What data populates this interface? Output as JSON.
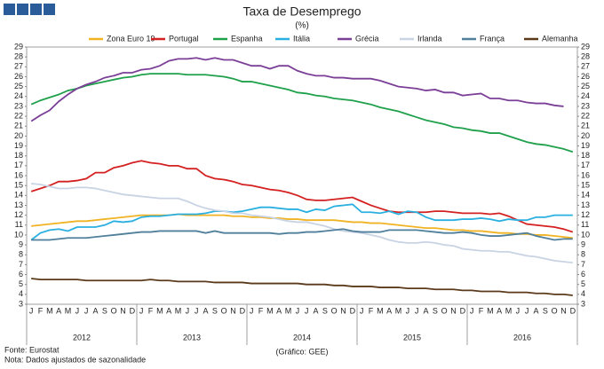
{
  "chart_data": {
    "type": "line",
    "title": "Taxa de Desemprego",
    "subtitle": "(%)",
    "categories": [
      "J",
      "F",
      "M",
      "A",
      "M",
      "J",
      "J",
      "A",
      "S",
      "O",
      "N",
      "D",
      "J",
      "F",
      "M",
      "A",
      "M",
      "J",
      "J",
      "A",
      "S",
      "O",
      "N",
      "D",
      "J",
      "F",
      "M",
      "A",
      "M",
      "J",
      "J",
      "A",
      "S",
      "O",
      "N",
      "D",
      "J",
      "F",
      "M",
      "A",
      "M",
      "J",
      "J",
      "A",
      "S",
      "O",
      "N",
      "D",
      "J",
      "F",
      "M",
      "A",
      "M",
      "J",
      "J",
      "A",
      "S",
      "O",
      "N",
      "D"
    ],
    "years": [
      "2012",
      "2013",
      "2014",
      "2015",
      "2016"
    ],
    "ylim": [
      3,
      29
    ],
    "yticks": [
      3,
      4,
      5,
      6,
      7,
      8,
      9,
      10,
      11,
      12,
      13,
      14,
      15,
      16,
      17,
      18,
      19,
      20,
      21,
      22,
      23,
      24,
      25,
      26,
      27,
      28,
      29
    ],
    "series": [
      {
        "name": "Zona Euro 19",
        "color": "#f0b323",
        "values": [
          10.9,
          11.0,
          11.1,
          11.2,
          11.3,
          11.4,
          11.4,
          11.5,
          11.6,
          11.7,
          11.8,
          11.9,
          12.0,
          12.0,
          12.0,
          12.0,
          12.1,
          12.0,
          12.0,
          12.0,
          12.0,
          12.0,
          11.9,
          11.9,
          11.8,
          11.8,
          11.7,
          11.7,
          11.6,
          11.6,
          11.5,
          11.5,
          11.5,
          11.5,
          11.4,
          11.3,
          11.3,
          11.2,
          11.2,
          11.1,
          11.0,
          10.9,
          10.8,
          10.7,
          10.7,
          10.6,
          10.5,
          10.5,
          10.4,
          10.4,
          10.3,
          10.2,
          10.2,
          10.1,
          10.1,
          10.0,
          10.0,
          9.9,
          9.8,
          9.7
        ]
      },
      {
        "name": "Portugal",
        "color": "#d42020",
        "values": [
          14.4,
          14.7,
          15.0,
          15.4,
          15.4,
          15.5,
          15.7,
          16.3,
          16.3,
          16.8,
          17.0,
          17.3,
          17.5,
          17.3,
          17.2,
          17.0,
          17.0,
          16.7,
          16.7,
          16.0,
          15.7,
          15.6,
          15.4,
          15.1,
          15.0,
          14.8,
          14.6,
          14.5,
          14.3,
          14.0,
          13.6,
          13.5,
          13.5,
          13.6,
          13.7,
          13.8,
          13.4,
          13.0,
          12.7,
          12.4,
          12.3,
          12.3,
          12.3,
          12.3,
          12.4,
          12.4,
          12.3,
          12.2,
          12.2,
          12.2,
          12.1,
          12.2,
          11.9,
          11.5,
          11.1,
          11.0,
          10.9,
          10.8,
          10.6,
          10.3
        ]
      },
      {
        "name": "Espanha",
        "color": "#1fa04a",
        "values": [
          23.2,
          23.6,
          23.9,
          24.2,
          24.6,
          24.8,
          25.1,
          25.3,
          25.5,
          25.7,
          25.9,
          26.0,
          26.2,
          26.3,
          26.3,
          26.3,
          26.3,
          26.2,
          26.2,
          26.2,
          26.1,
          26.0,
          25.8,
          25.5,
          25.5,
          25.3,
          25.1,
          24.9,
          24.7,
          24.4,
          24.3,
          24.1,
          24.0,
          23.8,
          23.7,
          23.6,
          23.4,
          23.2,
          22.9,
          22.7,
          22.5,
          22.2,
          21.9,
          21.6,
          21.4,
          21.2,
          20.9,
          20.8,
          20.6,
          20.5,
          20.3,
          20.3,
          20.0,
          19.7,
          19.4,
          19.2,
          19.1,
          18.9,
          18.7,
          18.4
        ]
      },
      {
        "name": "Itália",
        "color": "#2ab0e0",
        "values": [
          9.5,
          10.2,
          10.5,
          10.6,
          10.4,
          10.8,
          10.8,
          10.8,
          11.0,
          11.4,
          11.3,
          11.4,
          11.8,
          11.9,
          11.9,
          12.0,
          12.1,
          12.1,
          12.1,
          12.2,
          12.4,
          12.4,
          12.3,
          12.4,
          12.6,
          12.8,
          12.8,
          12.7,
          12.6,
          12.6,
          12.3,
          12.6,
          12.5,
          12.9,
          13.0,
          13.1,
          12.3,
          12.3,
          12.2,
          12.4,
          12.1,
          12.4,
          12.3,
          11.8,
          11.5,
          11.5,
          11.5,
          11.6,
          11.6,
          11.7,
          11.6,
          11.4,
          11.6,
          11.5,
          11.5,
          11.8,
          11.8,
          12.0,
          12.0,
          12.0
        ]
      },
      {
        "name": "Grécia",
        "color": "#7b3f98",
        "values": [
          21.5,
          22.1,
          22.6,
          23.5,
          24.2,
          24.8,
          25.2,
          25.5,
          25.9,
          26.1,
          26.4,
          26.4,
          26.7,
          26.8,
          27.1,
          27.6,
          27.8,
          27.8,
          27.9,
          27.7,
          27.9,
          27.7,
          27.7,
          27.4,
          27.1,
          27.1,
          26.8,
          27.1,
          27.1,
          26.6,
          26.3,
          26.1,
          26.1,
          25.9,
          25.9,
          25.8,
          25.8,
          25.8,
          25.6,
          25.3,
          25.0,
          24.9,
          24.8,
          24.6,
          24.7,
          24.4,
          24.4,
          24.1,
          24.2,
          24.3,
          23.8,
          23.8,
          23.6,
          23.6,
          23.4,
          23.3,
          23.3,
          23.1,
          23.0,
          null
        ]
      },
      {
        "name": "Irlanda",
        "color": "#c8d3e3",
        "values": [
          15.2,
          15.1,
          14.9,
          14.7,
          14.7,
          14.8,
          14.8,
          14.7,
          14.5,
          14.3,
          14.1,
          14.0,
          13.9,
          13.8,
          13.7,
          13.7,
          13.7,
          13.4,
          13.0,
          12.7,
          12.5,
          12.4,
          12.2,
          12.2,
          12.0,
          11.9,
          11.8,
          11.6,
          11.4,
          11.3,
          11.3,
          11.1,
          10.9,
          10.6,
          10.4,
          10.3,
          10.2,
          10.0,
          9.8,
          9.5,
          9.3,
          9.2,
          9.2,
          9.3,
          9.2,
          9.0,
          8.9,
          8.6,
          8.5,
          8.4,
          8.4,
          8.3,
          8.3,
          8.1,
          7.9,
          7.8,
          7.6,
          7.4,
          7.3,
          7.2
        ]
      },
      {
        "name": "França",
        "color": "#4f7f9a",
        "values": [
          9.5,
          9.5,
          9.5,
          9.6,
          9.7,
          9.7,
          9.7,
          9.8,
          9.9,
          10.0,
          10.1,
          10.2,
          10.3,
          10.3,
          10.4,
          10.4,
          10.4,
          10.4,
          10.4,
          10.2,
          10.4,
          10.2,
          10.2,
          10.2,
          10.2,
          10.2,
          10.2,
          10.1,
          10.2,
          10.2,
          10.3,
          10.3,
          10.4,
          10.5,
          10.6,
          10.4,
          10.3,
          10.3,
          10.3,
          10.5,
          10.5,
          10.5,
          10.5,
          10.4,
          10.3,
          10.2,
          10.2,
          10.3,
          10.2,
          10.0,
          9.9,
          9.9,
          10.0,
          10.1,
          10.2,
          9.9,
          9.7,
          9.5,
          9.6,
          9.6
        ]
      },
      {
        "name": "Alemanha",
        "color": "#5a3a1a",
        "values": [
          5.6,
          5.5,
          5.5,
          5.5,
          5.5,
          5.5,
          5.4,
          5.4,
          5.4,
          5.4,
          5.4,
          5.4,
          5.4,
          5.5,
          5.4,
          5.4,
          5.3,
          5.3,
          5.3,
          5.3,
          5.2,
          5.2,
          5.2,
          5.2,
          5.1,
          5.1,
          5.1,
          5.1,
          5.1,
          5.1,
          5.0,
          5.0,
          5.0,
          4.9,
          4.9,
          4.8,
          4.8,
          4.8,
          4.7,
          4.7,
          4.7,
          4.6,
          4.6,
          4.6,
          4.5,
          4.5,
          4.5,
          4.4,
          4.4,
          4.3,
          4.3,
          4.3,
          4.2,
          4.2,
          4.2,
          4.1,
          4.1,
          4.0,
          4.0,
          3.9
        ]
      }
    ],
    "source": "Fonte: Eurostat",
    "note": "Nota: Dados ajustados de sazonalidade",
    "credit": "(Gráfico: GEE)"
  }
}
